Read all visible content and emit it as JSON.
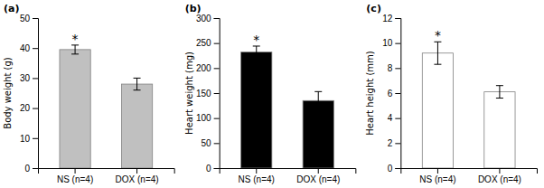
{
  "chart_data": [
    {
      "type": "bar",
      "title": "(a)",
      "y_label": "Body weight (g)",
      "categories": [
        "NS (n=4)",
        "DOX (n=4)"
      ],
      "values": [
        39.5,
        28.0
      ],
      "errors": [
        1.5,
        2.0
      ],
      "color": "#c0c0c0",
      "ylim": [
        0,
        50
      ],
      "yticks": [
        0,
        10,
        20,
        30,
        40,
        50
      ],
      "annotations": [
        {
          "text": "*",
          "category": "NS (n=4)"
        }
      ]
    },
    {
      "type": "bar",
      "title": "(b)",
      "y_label": "Heart weight (mg)",
      "categories": [
        "NS (n=4)",
        "DOX (n=4)"
      ],
      "values": [
        232.0,
        135.0
      ],
      "errors": [
        12.0,
        18.0
      ],
      "color": "#000000",
      "ylim": [
        0,
        300
      ],
      "yticks": [
        0,
        50,
        100,
        150,
        200,
        250,
        300
      ],
      "annotations": [
        {
          "text": "*",
          "category": "NS (n=4)"
        }
      ]
    },
    {
      "type": "bar",
      "title": "(c)",
      "y_label": "Heart height (mm)",
      "categories": [
        "NS (n=4)",
        "DOX (n=4)"
      ],
      "values": [
        9.2,
        6.1
      ],
      "errors": [
        0.9,
        0.5
      ],
      "color": "#ffffff",
      "ylim": [
        0,
        12
      ],
      "yticks": [
        0,
        2,
        4,
        6,
        8,
        10,
        12
      ],
      "annotations": [
        {
          "text": "*",
          "category": "NS (n=4)"
        }
      ]
    }
  ]
}
